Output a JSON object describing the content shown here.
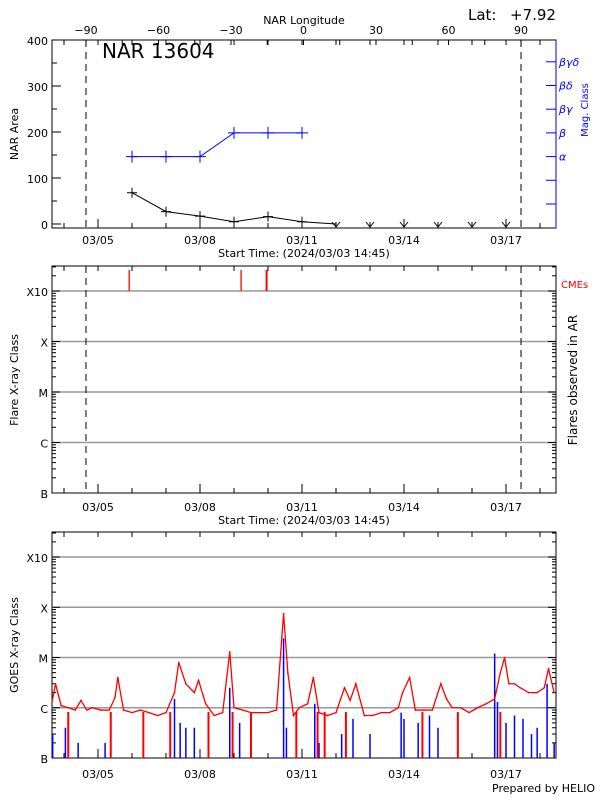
{
  "chart_data": [
    {
      "type": "line",
      "title": "NAR 13604",
      "latitude_label": "Lat:",
      "latitude_value": "+7.92",
      "xlabel": "Start Time: (2024/03/03 14:45)",
      "top_xlabel": "NAR Longitude",
      "ylabel": "NAR Area",
      "y2label": "Mag. Class",
      "x_tick_labels": [
        "03/05",
        "03/08",
        "03/11",
        "03/14",
        "03/17"
      ],
      "top_tick_labels": [
        "-90",
        "-60",
        "-30",
        "0",
        "30",
        "60",
        "90"
      ],
      "y_tick_labels": [
        "0",
        "100",
        "200",
        "300",
        "400"
      ],
      "ylim": [
        0,
        400
      ],
      "y2_tick_labels": [
        "α",
        "β",
        "βγ",
        "βδ",
        "βγδ"
      ],
      "limb_longitudes": [
        -90,
        90
      ],
      "series": [
        {
          "color": "#000000",
          "x": [
            "03/06 00",
            "03/07 00",
            "03/08 00",
            "03/09 00",
            "03/10 00",
            "03/11 00",
            "03/12 00"
          ],
          "values": [
            68,
            27,
            17,
            5,
            16,
            5,
            0
          ]
        },
        {
          "color": "#000000",
          "marker": "down-arrow",
          "x": [
            "03/12 00",
            "03/13 00",
            "03/14 00",
            "03/15 00",
            "03/16 00",
            "03/17 00"
          ],
          "values": [
            0,
            0,
            0,
            0,
            0,
            0
          ]
        },
        {
          "color": "#0000ff",
          "x": [
            "03/06 00",
            "03/07 00",
            "03/08 00",
            "03/09 00",
            "03/10 00",
            "03/11 00"
          ],
          "values": [
            "α",
            "α",
            "α",
            "β",
            "β",
            "β"
          ]
        }
      ]
    },
    {
      "type": "scatter",
      "xlabel": "Start Time: (2024/03/03 14:45)",
      "ylabel": "Flare X-ray Class",
      "y2label": "Flares observed in AR",
      "cme_label": "CMEs",
      "x_tick_labels": [
        "03/05",
        "03/08",
        "03/11",
        "03/14",
        "03/17"
      ],
      "y_tick_labels": [
        "B",
        "C",
        "M",
        "X",
        "X10"
      ],
      "cme_color": "#ff0000",
      "cmes": [
        "03/05 22",
        "03/09 05",
        "03/09 23"
      ],
      "flares": []
    },
    {
      "type": "line",
      "ylabel": "GOES X-ray Class",
      "footer": "Prepared by HELIO",
      "x_tick_labels": [
        "03/05",
        "03/08",
        "03/11",
        "03/14",
        "03/17"
      ],
      "y_tick_labels": [
        "B",
        "C",
        "M",
        "X",
        "X10"
      ],
      "series": [
        {
          "color": "#ff0000",
          "x": [
            "03/03 15",
            "03/03 18",
            "03/03 22",
            "03/04 03",
            "03/04 08",
            "03/04 12",
            "03/04 16",
            "03/04 20",
            "03/05 02",
            "03/05 08",
            "03/05 12",
            "03/05 14",
            "03/05 18",
            "03/06 00",
            "03/06 06",
            "03/06 12",
            "03/06 18",
            "03/07 00",
            "03/07 06",
            "03/07 09",
            "03/07 14",
            "03/07 20",
            "03/07 23",
            "03/08 04",
            "03/08 10",
            "03/08 16",
            "03/08 21",
            "03/09 00",
            "03/09 06",
            "03/09 12",
            "03/09 18",
            "03/10 00",
            "03/10 06",
            "03/10 11",
            "03/10 14",
            "03/10 18",
            "03/10 22",
            "03/11 04",
            "03/11 08",
            "03/11 12",
            "03/11 18",
            "03/12 00",
            "03/12 06",
            "03/12 10",
            "03/12 14",
            "03/12 20",
            "03/13 02",
            "03/13 08",
            "03/13 14",
            "03/13 20",
            "03/13 23",
            "03/14 04",
            "03/14 08",
            "03/14 14",
            "03/14 20",
            "03/15 02",
            "03/15 06",
            "03/15 10",
            "03/15 16",
            "03/15 22",
            "03/16 04",
            "03/16 10",
            "03/16 16",
            "03/16 20",
            "03/16 23",
            "03/17 02",
            "03/17 06",
            "03/17 10",
            "03/17 16",
            "03/17 22",
            "03/18 03",
            "03/18 06",
            "03/18 10"
          ],
          "values": [
            "C1.3",
            "C3",
            "C1.1",
            "C1",
            "B9",
            "C1.4",
            "B9",
            "C1",
            "B9",
            "B9",
            "C1.6",
            "C4",
            "B9",
            "B8",
            "B9",
            "B8",
            "B7",
            "B8",
            "C2",
            "C8",
            "C3",
            "C2",
            "C3.5",
            "C1.2",
            "B7",
            "B8",
            "M1.3",
            "C1",
            "B9",
            "B8",
            "B8",
            "B8",
            "B9",
            "M7.5",
            "C5",
            "B7",
            "C1",
            "C1.2",
            "C4",
            "B8",
            "B7",
            "B8",
            "C2.5",
            "C1.4",
            "C3",
            "B7",
            "B7",
            "B8",
            "B8",
            "C1",
            "C2",
            "C4",
            "B9",
            "B9",
            "B9",
            "C3",
            "C1.5",
            "C1",
            "C1",
            "B8",
            "C1",
            "C1.2",
            "C1.5",
            "C5",
            "M1",
            "C3",
            "C3",
            "C2.5",
            "C2",
            "C2",
            "C2.5",
            "C6",
            "C2"
          ]
        },
        {
          "color": "#0000ff",
          "x": [
            "03/03 16",
            "03/04 01",
            "03/04 10",
            "03/05 05",
            "03/07 06",
            "03/07 10",
            "03/07 14",
            "03/07 20",
            "03/08 06",
            "03/08 21",
            "03/09 04",
            "03/10 11",
            "03/10 13",
            "03/11 09",
            "03/11 12",
            "03/12 04",
            "03/12 12",
            "03/13 00",
            "03/13 22",
            "03/14 00",
            "03/14 10",
            "03/14 18",
            "03/15 00",
            "03/16 16",
            "03/16 18",
            "03/17 00",
            "03/17 06",
            "03/17 12",
            "03/17 18",
            "03/17 22",
            "03/18 05",
            "03/18 10"
          ],
          "values": [
            "B3",
            "B4",
            "B2",
            "B2",
            "C1.5",
            "B5",
            "B4",
            "B4",
            "B3",
            "C2.5",
            "B5",
            "M2.4",
            "B4",
            "C1.2",
            "B2",
            "B3",
            "B6",
            "B3",
            "B8",
            "B6",
            "B5",
            "B7",
            "B4",
            "M1.2",
            "C1.3",
            "B5",
            "B7",
            "B6",
            "B3",
            "B4",
            "C3",
            "B2"
          ]
        }
      ],
      "dropouts": [
        "03/04 03",
        "03/05 09",
        "03/06 08",
        "03/07 03",
        "03/08 06",
        "03/08 23",
        "03/09 12",
        "03/10 20",
        "03/11 11",
        "03/11 16",
        "03/12 07",
        "03/14 13",
        "03/15 14",
        "03/16 20"
      ]
    }
  ]
}
